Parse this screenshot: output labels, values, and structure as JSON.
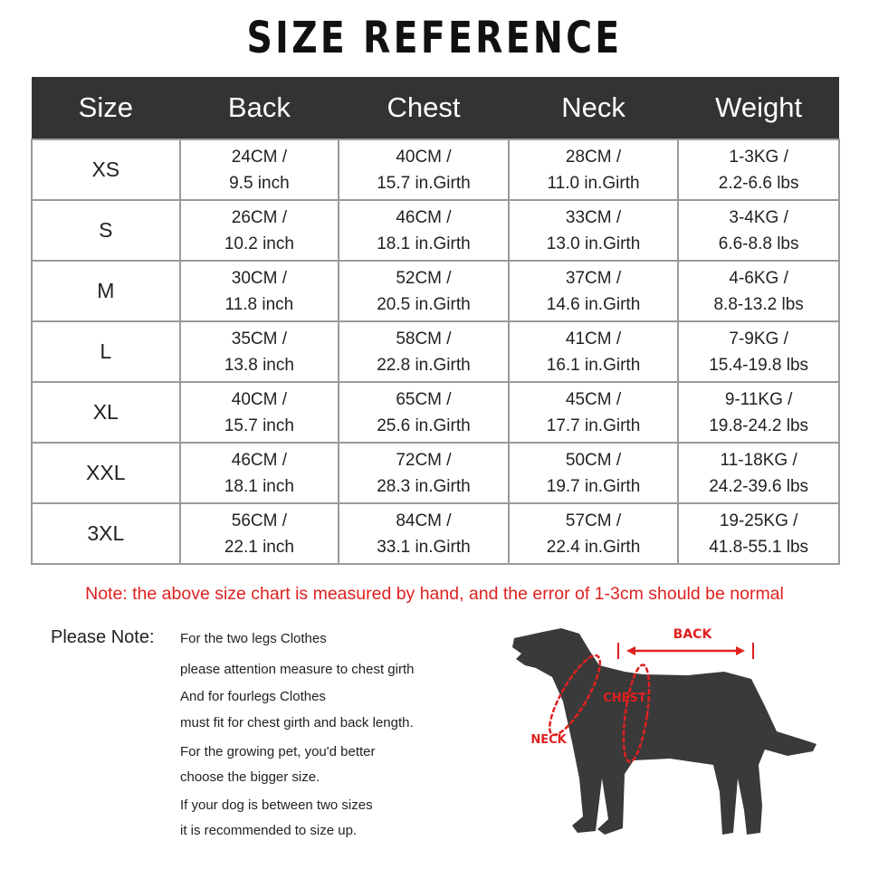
{
  "title": "SIZE REFERENCE",
  "table": {
    "headers": [
      "Size",
      "Back",
      "Chest",
      "Neck",
      "Weight"
    ],
    "rows": [
      {
        "size": "XS",
        "back": [
          "24CM /",
          "9.5 inch"
        ],
        "chest": [
          "40CM /",
          "15.7 in.Girth"
        ],
        "neck": [
          "28CM /",
          "11.0 in.Girth"
        ],
        "weight": [
          "1-3KG /",
          "2.2-6.6 lbs"
        ]
      },
      {
        "size": "S",
        "back": [
          "26CM /",
          "10.2 inch"
        ],
        "chest": [
          "46CM /",
          "18.1 in.Girth"
        ],
        "neck": [
          "33CM /",
          "13.0 in.Girth"
        ],
        "weight": [
          "3-4KG /",
          "6.6-8.8 lbs"
        ]
      },
      {
        "size": "M",
        "back": [
          "30CM /",
          "11.8 inch"
        ],
        "chest": [
          "52CM /",
          "20.5 in.Girth"
        ],
        "neck": [
          "37CM /",
          "14.6 in.Girth"
        ],
        "weight": [
          "4-6KG /",
          "8.8-13.2 lbs"
        ]
      },
      {
        "size": "L",
        "back": [
          "35CM /",
          "13.8 inch"
        ],
        "chest": [
          "58CM /",
          "22.8 in.Girth"
        ],
        "neck": [
          "41CM /",
          "16.1 in.Girth"
        ],
        "weight": [
          "7-9KG /",
          "15.4-19.8 lbs"
        ]
      },
      {
        "size": "XL",
        "back": [
          "40CM /",
          "15.7 inch"
        ],
        "chest": [
          "65CM /",
          "25.6 in.Girth"
        ],
        "neck": [
          "45CM /",
          "17.7 in.Girth"
        ],
        "weight": [
          "9-11KG /",
          "19.8-24.2 lbs"
        ]
      },
      {
        "size": "XXL",
        "back": [
          "46CM /",
          "18.1 inch"
        ],
        "chest": [
          "72CM /",
          "28.3 in.Girth"
        ],
        "neck": [
          "50CM /",
          "19.7 in.Girth"
        ],
        "weight": [
          "11-18KG /",
          "24.2-39.6 lbs"
        ]
      },
      {
        "size": "3XL",
        "back": [
          "56CM /",
          "22.1 inch"
        ],
        "chest": [
          "84CM /",
          "33.1 in.Girth"
        ],
        "neck": [
          "57CM /",
          "22.4 in.Girth"
        ],
        "weight": [
          "19-25KG /",
          "41.8-55.1 lbs"
        ]
      }
    ]
  },
  "note": "Note: the above size chart is measured by hand, and the error of 1-3cm should be normal",
  "please_note": {
    "label": "Please Note:",
    "lines": [
      "For the two legs Clothes",
      "please attention measure to chest girth",
      "And for fourlegs Clothes",
      "must fit for chest girth and back length.",
      "For the growing pet, you'd better",
      "choose the bigger size.",
      "If your dog is between two sizes",
      "it is recommended to size up."
    ]
  },
  "diagram": {
    "back": "BACK",
    "chest": "CHEST",
    "neck": "NECK"
  },
  "colors": {
    "header_bg": "#333333",
    "accent_red": "#e02020",
    "dog": "#3a3a3a"
  }
}
